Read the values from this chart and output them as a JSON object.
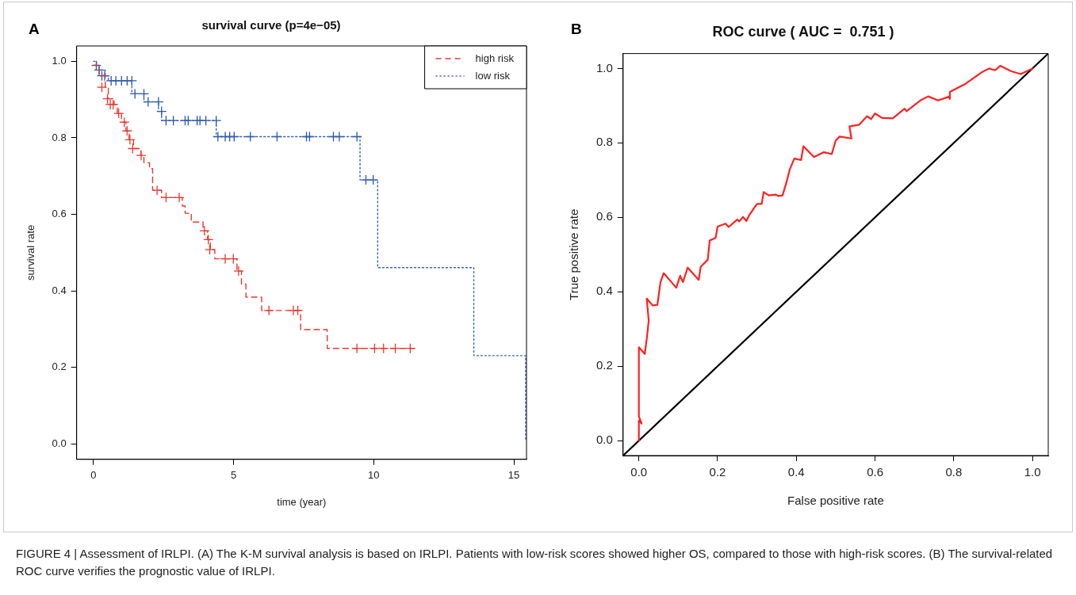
{
  "chart_data": [
    {
      "type": "step",
      "title": "survival curve (p=4e−05)",
      "xlabel": "time (year)",
      "ylabel": "survival rate",
      "xlim": [
        -0.6,
        15.45
      ],
      "ylim": [
        -0.04,
        1.04
      ],
      "xticks": [
        0,
        5,
        10,
        15
      ],
      "yticks": [
        {
          "value": 0,
          "label": "0.0"
        },
        {
          "value": 0.2,
          "label": "0.2"
        },
        {
          "value": 0.4,
          "label": "0.4"
        },
        {
          "value": 0.6,
          "label": "0.6"
        },
        {
          "value": 0.8,
          "label": "0.8"
        },
        {
          "value": 1,
          "label": "1.0"
        }
      ],
      "grid": false,
      "legend": "top right",
      "annotations": [
        "A",
        "FIGURE 4 | Assessment of IRLPI. (A) The K-M survival analysis is based on IRLPI. Patients with low-risk scores showed higher OS, compared to those with high-risk scores. (B) The survival-related ROC curve verifies the prognostic value of IRLPI."
      ],
      "series": [
        {
          "name": "high risk",
          "type": "step",
          "color": "#e8392f",
          "line_style": "dashed",
          "marker": "none",
          "x": [
            0,
            0.21,
            0.42,
            0.53,
            0.74,
            0.85,
            1.0,
            1.16,
            1.27,
            1.43,
            1.69,
            1.8,
            2.0,
            2.11,
            2.43,
            3.17,
            3.27,
            3.49,
            3.91,
            4.07,
            4.17,
            4.33,
            5.12,
            5.28,
            5.44,
            6.0,
            7.39,
            8.34,
            11.46
          ],
          "values": [
            0.99,
            0.963,
            0.932,
            0.902,
            0.887,
            0.864,
            0.841,
            0.818,
            0.795,
            0.772,
            0.754,
            0.735,
            0.72,
            0.663,
            0.644,
            0.622,
            0.603,
            0.58,
            0.557,
            0.534,
            0.508,
            0.484,
            0.452,
            0.418,
            0.384,
            0.349,
            0.299,
            0.25,
            0.25
          ]
        },
        {
          "name": "low risk",
          "type": "step",
          "color": "#3a64c0",
          "line_style": "dotted",
          "marker": "none",
          "x": [
            0,
            0.11,
            0.21,
            0.42,
            0.53,
            1.37,
            1.8,
            2.32,
            2.43,
            4.38,
            9.51,
            10.14,
            13.57,
            15.42
          ],
          "values": [
            1.0,
            0.989,
            0.977,
            0.962,
            0.949,
            0.915,
            0.894,
            0.869,
            0.845,
            0.803,
            0.69,
            0.461,
            0.231,
            0.01
          ]
        },
        {
          "type": "scatter",
          "color": "#e8392f",
          "marker": "cross",
          "x": [
            0.3,
            0.5,
            0.6,
            0.7,
            0.9,
            1.1,
            1.2,
            1.3,
            1.4,
            1.7,
            2.27,
            2.59,
            3.06,
            3.96,
            4.1,
            4.15,
            4.7,
            4.99,
            5.18,
            6.26,
            7.13,
            7.29,
            9.4,
            10.03,
            10.35,
            10.77,
            11.3
          ],
          "values": [
            0.932,
            0.902,
            0.887,
            0.887,
            0.864,
            0.841,
            0.818,
            0.795,
            0.772,
            0.754,
            0.663,
            0.644,
            0.644,
            0.557,
            0.534,
            0.508,
            0.484,
            0.484,
            0.452,
            0.349,
            0.349,
            0.349,
            0.25,
            0.25,
            0.25,
            0.25,
            0.25
          ]
        },
        {
          "type": "scatter",
          "color": "#2a56a8",
          "marker": "cross",
          "x": [
            0.1,
            0.2,
            0.3,
            0.4,
            0.63,
            0.8,
            1.0,
            1.2,
            1.37,
            1.48,
            1.8,
            1.95,
            2.32,
            2.43,
            2.59,
            2.85,
            3.27,
            3.38,
            3.7,
            3.8,
            4.01,
            4.38,
            4.44,
            4.7,
            4.86,
            5.02,
            5.6,
            6.55,
            7.6,
            7.71,
            8.56,
            8.77,
            9.4,
            9.72,
            9.98
          ],
          "values": [
            0.989,
            0.977,
            0.962,
            0.962,
            0.949,
            0.949,
            0.949,
            0.949,
            0.949,
            0.915,
            0.915,
            0.894,
            0.894,
            0.869,
            0.845,
            0.845,
            0.845,
            0.845,
            0.845,
            0.845,
            0.845,
            0.845,
            0.803,
            0.803,
            0.803,
            0.803,
            0.803,
            0.803,
            0.803,
            0.803,
            0.803,
            0.803,
            0.803,
            0.69,
            0.69
          ]
        }
      ]
    },
    {
      "type": "line",
      "title": "ROC curve ( AUC =  0.751 )",
      "xlabel": "False positive rate",
      "ylabel": "True positive rate",
      "xlim": [
        -0.04,
        1.04
      ],
      "ylim": [
        -0.04,
        1.04
      ],
      "xticks": [
        {
          "value": 0,
          "label": "0.0"
        },
        {
          "value": 0.2,
          "label": "0.2"
        },
        {
          "value": 0.4,
          "label": "0.4"
        },
        {
          "value": 0.6,
          "label": "0.6"
        },
        {
          "value": 0.8,
          "label": "0.8"
        },
        {
          "value": 1,
          "label": "1.0"
        }
      ],
      "yticks": [
        {
          "value": 0,
          "label": "0.0"
        },
        {
          "value": 0.2,
          "label": "0.2"
        },
        {
          "value": 0.4,
          "label": "0.4"
        },
        {
          "value": 0.6,
          "label": "0.6"
        },
        {
          "value": 0.8,
          "label": "0.8"
        },
        {
          "value": 1,
          "label": "1.0"
        }
      ],
      "grid": false,
      "annotations": [
        "B"
      ],
      "series": [
        {
          "color": "#ff2020",
          "x": [
            0,
            0,
            0.007,
            0,
            0,
            0.015,
            0.02,
            0.025,
            0.02,
            0.035,
            0.047,
            0.055,
            0.063,
            0.095,
            0.105,
            0.112,
            0.124,
            0.152,
            0.157,
            0.175,
            0.18,
            0.195,
            0.2,
            0.22,
            0.228,
            0.25,
            0.255,
            0.265,
            0.273,
            0.28,
            0.3,
            0.312,
            0.317,
            0.33,
            0.348,
            0.355,
            0.365,
            0.375,
            0.383,
            0.395,
            0.412,
            0.418,
            0.445,
            0.47,
            0.49,
            0.5,
            0.51,
            0.54,
            0.535,
            0.56,
            0.58,
            0.59,
            0.6,
            0.618,
            0.645,
            0.675,
            0.68,
            0.715,
            0.735,
            0.76,
            0.79,
            0.79,
            0.79,
            0.83,
            0.87,
            0.89,
            0.905,
            0.918,
            0.945,
            0.97,
            1.0
          ],
          "values": [
            0,
            0.054,
            0.046,
            0.065,
            0.251,
            0.233,
            0.273,
            0.322,
            0.382,
            0.363,
            0.365,
            0.426,
            0.45,
            0.411,
            0.443,
            0.426,
            0.465,
            0.432,
            0.467,
            0.486,
            0.538,
            0.545,
            0.575,
            0.583,
            0.574,
            0.594,
            0.589,
            0.601,
            0.59,
            0.605,
            0.636,
            0.636,
            0.668,
            0.659,
            0.661,
            0.657,
            0.659,
            0.694,
            0.728,
            0.758,
            0.754,
            0.791,
            0.762,
            0.775,
            0.77,
            0.806,
            0.817,
            0.812,
            0.844,
            0.849,
            0.872,
            0.864,
            0.879,
            0.867,
            0.866,
            0.892,
            0.885,
            0.914,
            0.925,
            0.914,
            0.925,
            0.918,
            0.937,
            0.959,
            0.989,
            1.0,
            0.995,
            1.007,
            0.993,
            0.985,
            1.0
          ]
        },
        {
          "color": "#000000",
          "x": [
            -0.04,
            1.04
          ],
          "values": [
            -0.04,
            1.04
          ]
        }
      ]
    }
  ]
}
